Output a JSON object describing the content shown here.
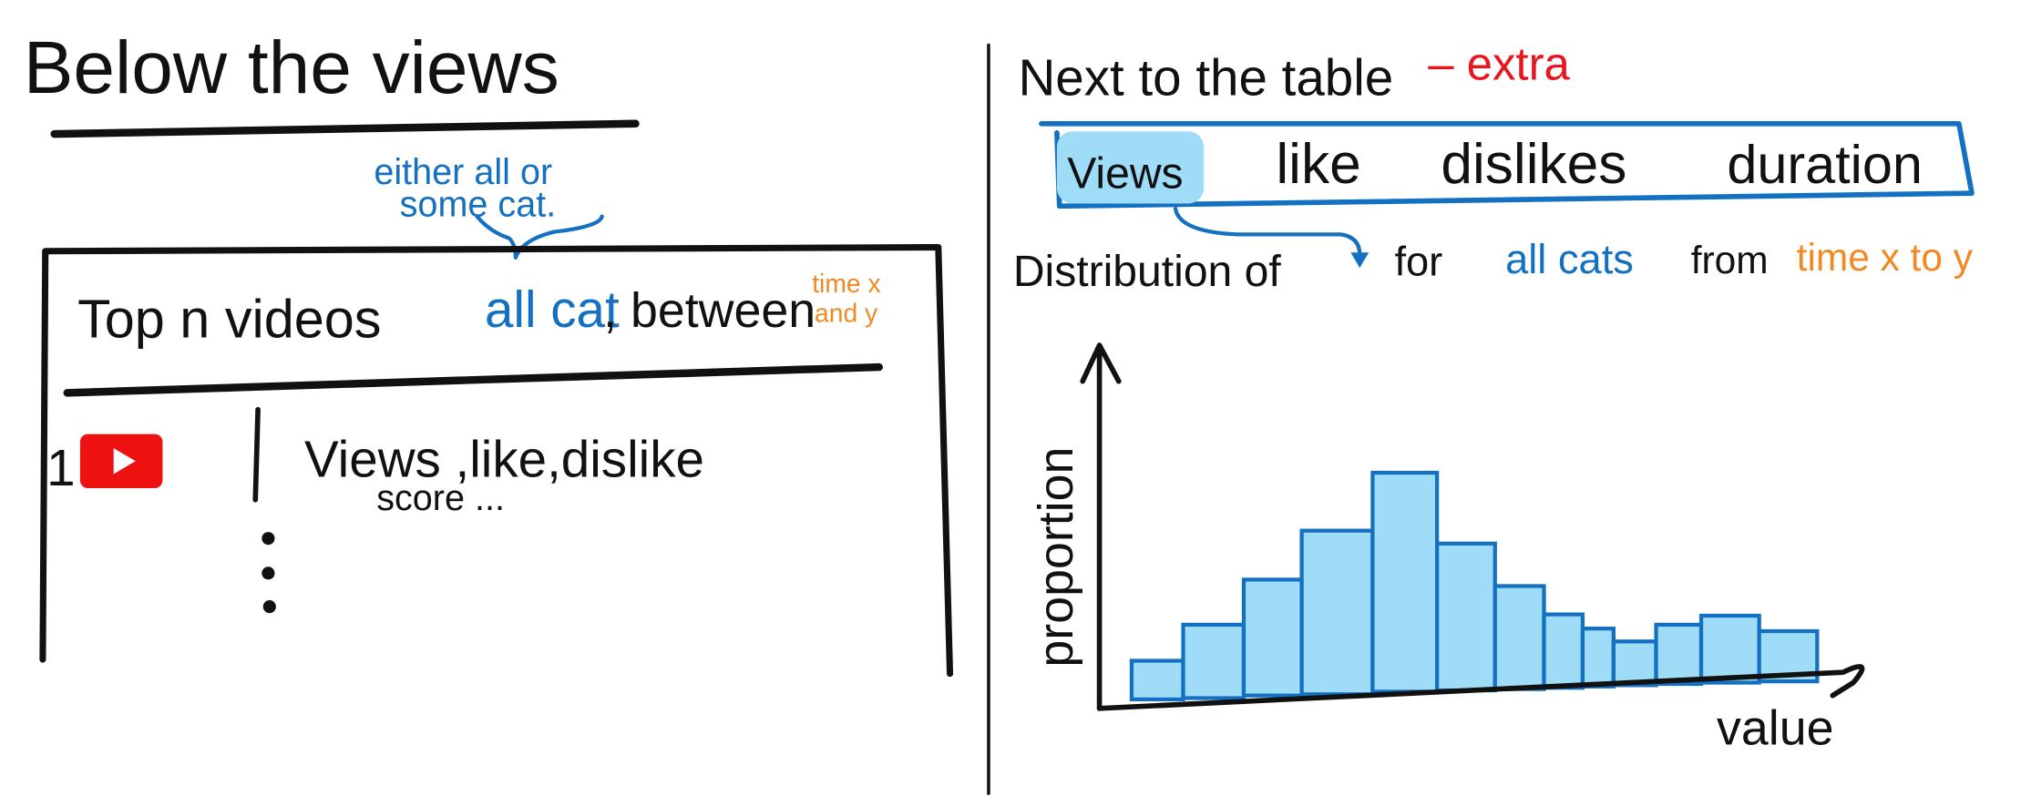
{
  "left": {
    "title": "Below the views",
    "annotation": [
      "either all or",
      "some cat."
    ],
    "table": {
      "header": {
        "text": "Top n videos",
        "category": "all cat",
        "between": ", between",
        "time": [
          "time x",
          "and y"
        ]
      },
      "rows": [
        {
          "rank": "1",
          "stats": "Views ,like,dislike",
          "more": "score ..."
        }
      ]
    }
  },
  "right": {
    "title": "Next to the table",
    "extra": "– extra",
    "tabs": [
      "Views",
      "like",
      "dislikes",
      "duration"
    ],
    "sentence": {
      "start": "Distribution of",
      "for": "for",
      "category": "all cats",
      "from": "from",
      "time": "time x to y"
    },
    "chart": {
      "y_label": "proportion",
      "x_label": "value"
    }
  }
}
